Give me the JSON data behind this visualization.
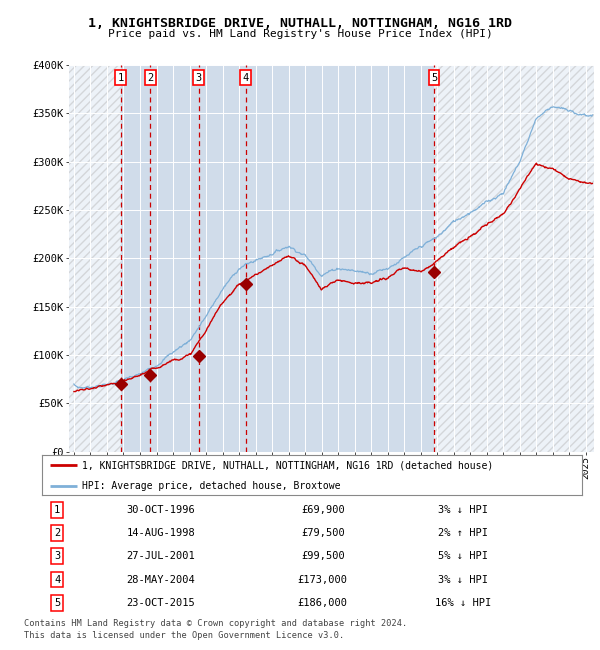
{
  "title": "1, KNIGHTSBRIDGE DRIVE, NUTHALL, NOTTINGHAM, NG16 1RD",
  "subtitle": "Price paid vs. HM Land Registry's House Price Index (HPI)",
  "ylim": [
    0,
    400000
  ],
  "yticks": [
    0,
    50000,
    100000,
    150000,
    200000,
    250000,
    300000,
    350000,
    400000
  ],
  "xlim_start": 1993.7,
  "xlim_end": 2025.5,
  "xticks": [
    1994,
    1995,
    1996,
    1997,
    1998,
    1999,
    2000,
    2001,
    2002,
    2003,
    2004,
    2005,
    2006,
    2007,
    2008,
    2009,
    2010,
    2011,
    2012,
    2013,
    2014,
    2015,
    2016,
    2017,
    2018,
    2019,
    2020,
    2021,
    2022,
    2023,
    2024,
    2025
  ],
  "bg_color": "#dce6f1",
  "hatch_color": "#c8c8c8",
  "hpi_color": "#7fb0d8",
  "price_color": "#cc0000",
  "marker_color": "#990000",
  "grid_color": "#ffffff",
  "dashed_line_color": "#cc0000",
  "sale_dates_x": [
    1996.833,
    1998.617,
    2001.567,
    2004.411,
    2015.806
  ],
  "sale_prices": [
    69900,
    79500,
    99500,
    173000,
    186000
  ],
  "sale_labels": [
    "1",
    "2",
    "3",
    "4",
    "5"
  ],
  "sale_label_dates": [
    "30-OCT-1996",
    "14-AUG-1998",
    "27-JUL-2001",
    "28-MAY-2004",
    "23-OCT-2015"
  ],
  "sale_label_prices": [
    "£69,900",
    "£79,500",
    "£99,500",
    "£173,000",
    "£186,000"
  ],
  "sale_label_hpi": [
    "3% ↓ HPI",
    "2% ↑ HPI",
    "5% ↓ HPI",
    "3% ↓ HPI",
    "16% ↓ HPI"
  ],
  "legend_line1": "1, KNIGHTSBRIDGE DRIVE, NUTHALL, NOTTINGHAM, NG16 1RD (detached house)",
  "legend_line2": "HPI: Average price, detached house, Broxtowe",
  "footnote1": "Contains HM Land Registry data © Crown copyright and database right 2024.",
  "footnote2": "This data is licensed under the Open Government Licence v3.0.",
  "hpi_anchors_years": [
    1994,
    1995,
    1996,
    1997,
    1998,
    1999,
    2000,
    2001,
    2002,
    2003,
    2004,
    2005,
    2006,
    2007,
    2008,
    2009,
    2010,
    2011,
    2012,
    2013,
    2014,
    2015,
    2016,
    2017,
    2018,
    2019,
    2020,
    2021,
    2022,
    2023,
    2024,
    2025
  ],
  "hpi_anchors_vals": [
    65000,
    67000,
    69500,
    74000,
    80000,
    90000,
    103000,
    115000,
    140000,
    168000,
    190000,
    198000,
    205000,
    213000,
    203000,
    183000,
    190000,
    187000,
    185000,
    190000,
    200000,
    212000,
    222000,
    238000,
    248000,
    258000,
    268000,
    300000,
    345000,
    358000,
    352000,
    348000
  ],
  "price_anchors_years": [
    1994,
    1995,
    1996,
    1997,
    1998,
    1999,
    2000,
    2001,
    2002,
    2003,
    2004,
    2005,
    2006,
    2007,
    2008,
    2009,
    2010,
    2011,
    2012,
    2013,
    2014,
    2015,
    2016,
    2017,
    2018,
    2019,
    2020,
    2021,
    2022,
    2023,
    2024,
    2025
  ],
  "price_anchors_vals": [
    63000,
    65000,
    68500,
    72000,
    79500,
    87000,
    95000,
    99500,
    125000,
    155000,
    173000,
    183000,
    192000,
    203000,
    193000,
    168000,
    178000,
    175000,
    174000,
    180000,
    190000,
    186000,
    198000,
    212000,
    222000,
    235000,
    246000,
    272000,
    298000,
    293000,
    283000,
    278000
  ]
}
